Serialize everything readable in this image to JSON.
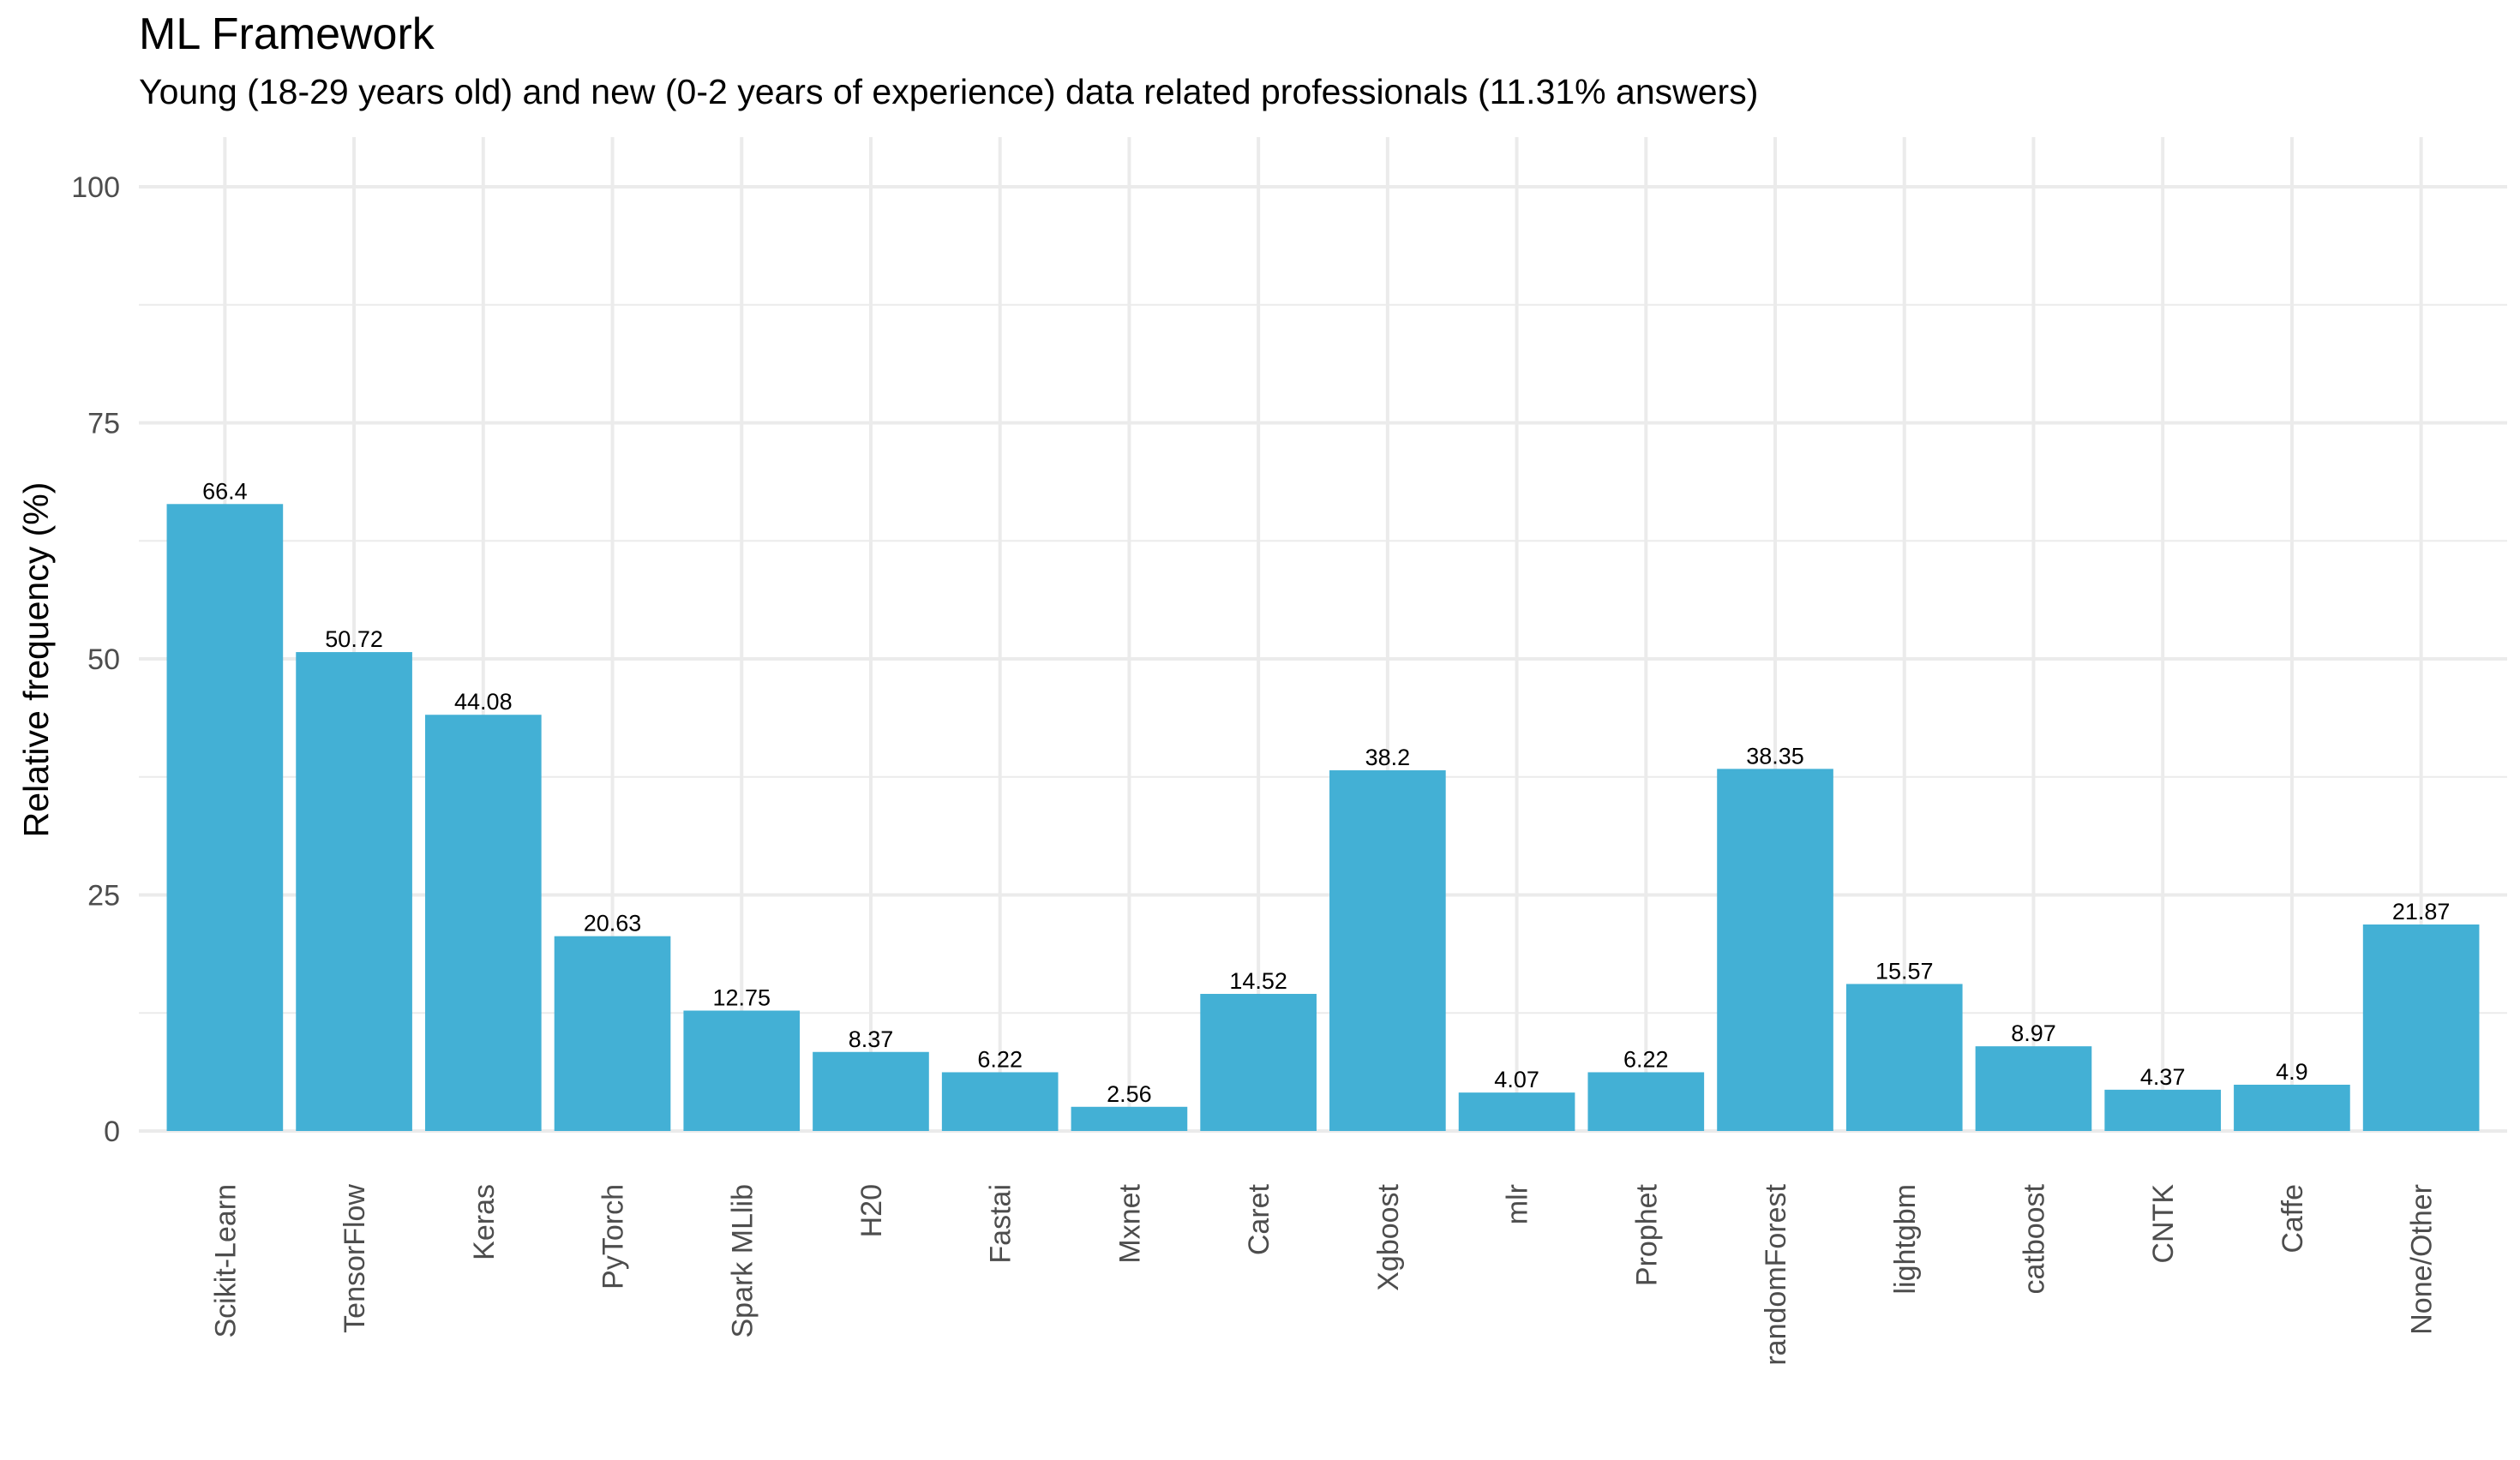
{
  "chart_data": {
    "type": "bar",
    "title": "ML Framework",
    "subtitle": "Young (18-29 years old) and new (0-2 years of experience) data related professionals (11.31% answers)",
    "xlabel": "",
    "ylabel": "Relative frequency (%)",
    "ylim": [
      0,
      100
    ],
    "yticks": [
      0,
      25,
      50,
      75,
      100
    ],
    "grid": true,
    "bar_color": "#43b0d5",
    "grid_color": "#ebebeb",
    "categories": [
      "Scikit-Learn",
      "TensorFlow",
      "Keras",
      "PyTorch",
      "Spark MLlib",
      "H20",
      "Fastai",
      "Mxnet",
      "Caret",
      "Xgboost",
      "mlr",
      "Prophet",
      "randomForest",
      "lightgbm",
      "catboost",
      "CNTK",
      "Caffe",
      "None/Other"
    ],
    "values": [
      66.4,
      50.72,
      44.08,
      20.63,
      12.75,
      8.37,
      6.22,
      2.56,
      14.52,
      38.2,
      4.07,
      6.22,
      38.35,
      15.57,
      8.97,
      4.37,
      4.9,
      21.87
    ],
    "value_labels": [
      "66.4",
      "50.72",
      "44.08",
      "20.63",
      "12.75",
      "8.37",
      "6.22",
      "2.56",
      "14.52",
      "38.2",
      "4.07",
      "6.22",
      "38.35",
      "15.57",
      "8.97",
      "4.37",
      "4.9",
      "21.87"
    ]
  }
}
